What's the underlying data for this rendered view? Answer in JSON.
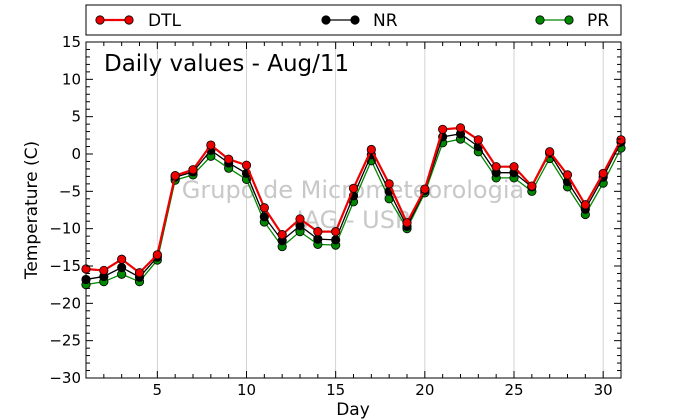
{
  "chart_data": {
    "type": "line",
    "title": "Daily values - Aug/11",
    "xlabel": "Day",
    "ylabel": "Temperature (C)",
    "xlim": [
      1,
      31
    ],
    "ylim": [
      -30,
      15
    ],
    "xticks": [
      5,
      10,
      15,
      20,
      25,
      30
    ],
    "yticks": [
      -30,
      -25,
      -20,
      -15,
      -10,
      -5,
      0,
      5,
      10,
      15
    ],
    "grid": "vertical",
    "legend_position": "top",
    "watermark": [
      "Grupo de Micrometeorologia",
      "IAG - USP"
    ],
    "x": [
      1,
      2,
      3,
      4,
      5,
      6,
      7,
      8,
      9,
      10,
      11,
      12,
      13,
      14,
      15,
      16,
      17,
      18,
      19,
      20,
      21,
      22,
      23,
      24,
      25,
      26,
      27,
      28,
      29,
      30,
      31
    ],
    "series": [
      {
        "name": "DTL",
        "color": "#ee0000",
        "values": [
          -15.4,
          -15.6,
          -14.1,
          -15.9,
          -13.5,
          -2.9,
          -2.1,
          1.2,
          -0.7,
          -1.5,
          -7.2,
          -10.8,
          -8.7,
          -10.4,
          -10.4,
          -4.6,
          0.6,
          -4.0,
          -9.2,
          -4.7,
          3.3,
          3.5,
          1.9,
          -1.7,
          -1.7,
          -4.3,
          0.3,
          -2.8,
          -6.8,
          -2.6,
          1.9
        ]
      },
      {
        "name": "NR",
        "color": "#000000",
        "values": [
          -16.8,
          -16.4,
          -15.2,
          -16.5,
          -13.8,
          -3.1,
          -2.4,
          0.5,
          -1.2,
          -2.6,
          -8.4,
          -11.6,
          -9.6,
          -11.4,
          -11.5,
          -5.6,
          -0.1,
          -5.0,
          -9.7,
          -4.9,
          2.3,
          2.7,
          1.0,
          -2.5,
          -2.5,
          -4.4,
          0.1,
          -3.7,
          -7.4,
          -3.1,
          1.6
        ]
      },
      {
        "name": "PR",
        "color": "#008800",
        "values": [
          -17.5,
          -17.1,
          -16.1,
          -17.1,
          -14.2,
          -3.5,
          -2.8,
          -0.3,
          -1.9,
          -3.4,
          -9.1,
          -12.4,
          -10.4,
          -12.1,
          -12.2,
          -6.4,
          -0.9,
          -6.0,
          -10.0,
          -5.2,
          1.5,
          2.0,
          0.3,
          -3.2,
          -3.2,
          -5.0,
          -0.6,
          -4.4,
          -8.1,
          -3.9,
          0.8
        ]
      }
    ]
  }
}
